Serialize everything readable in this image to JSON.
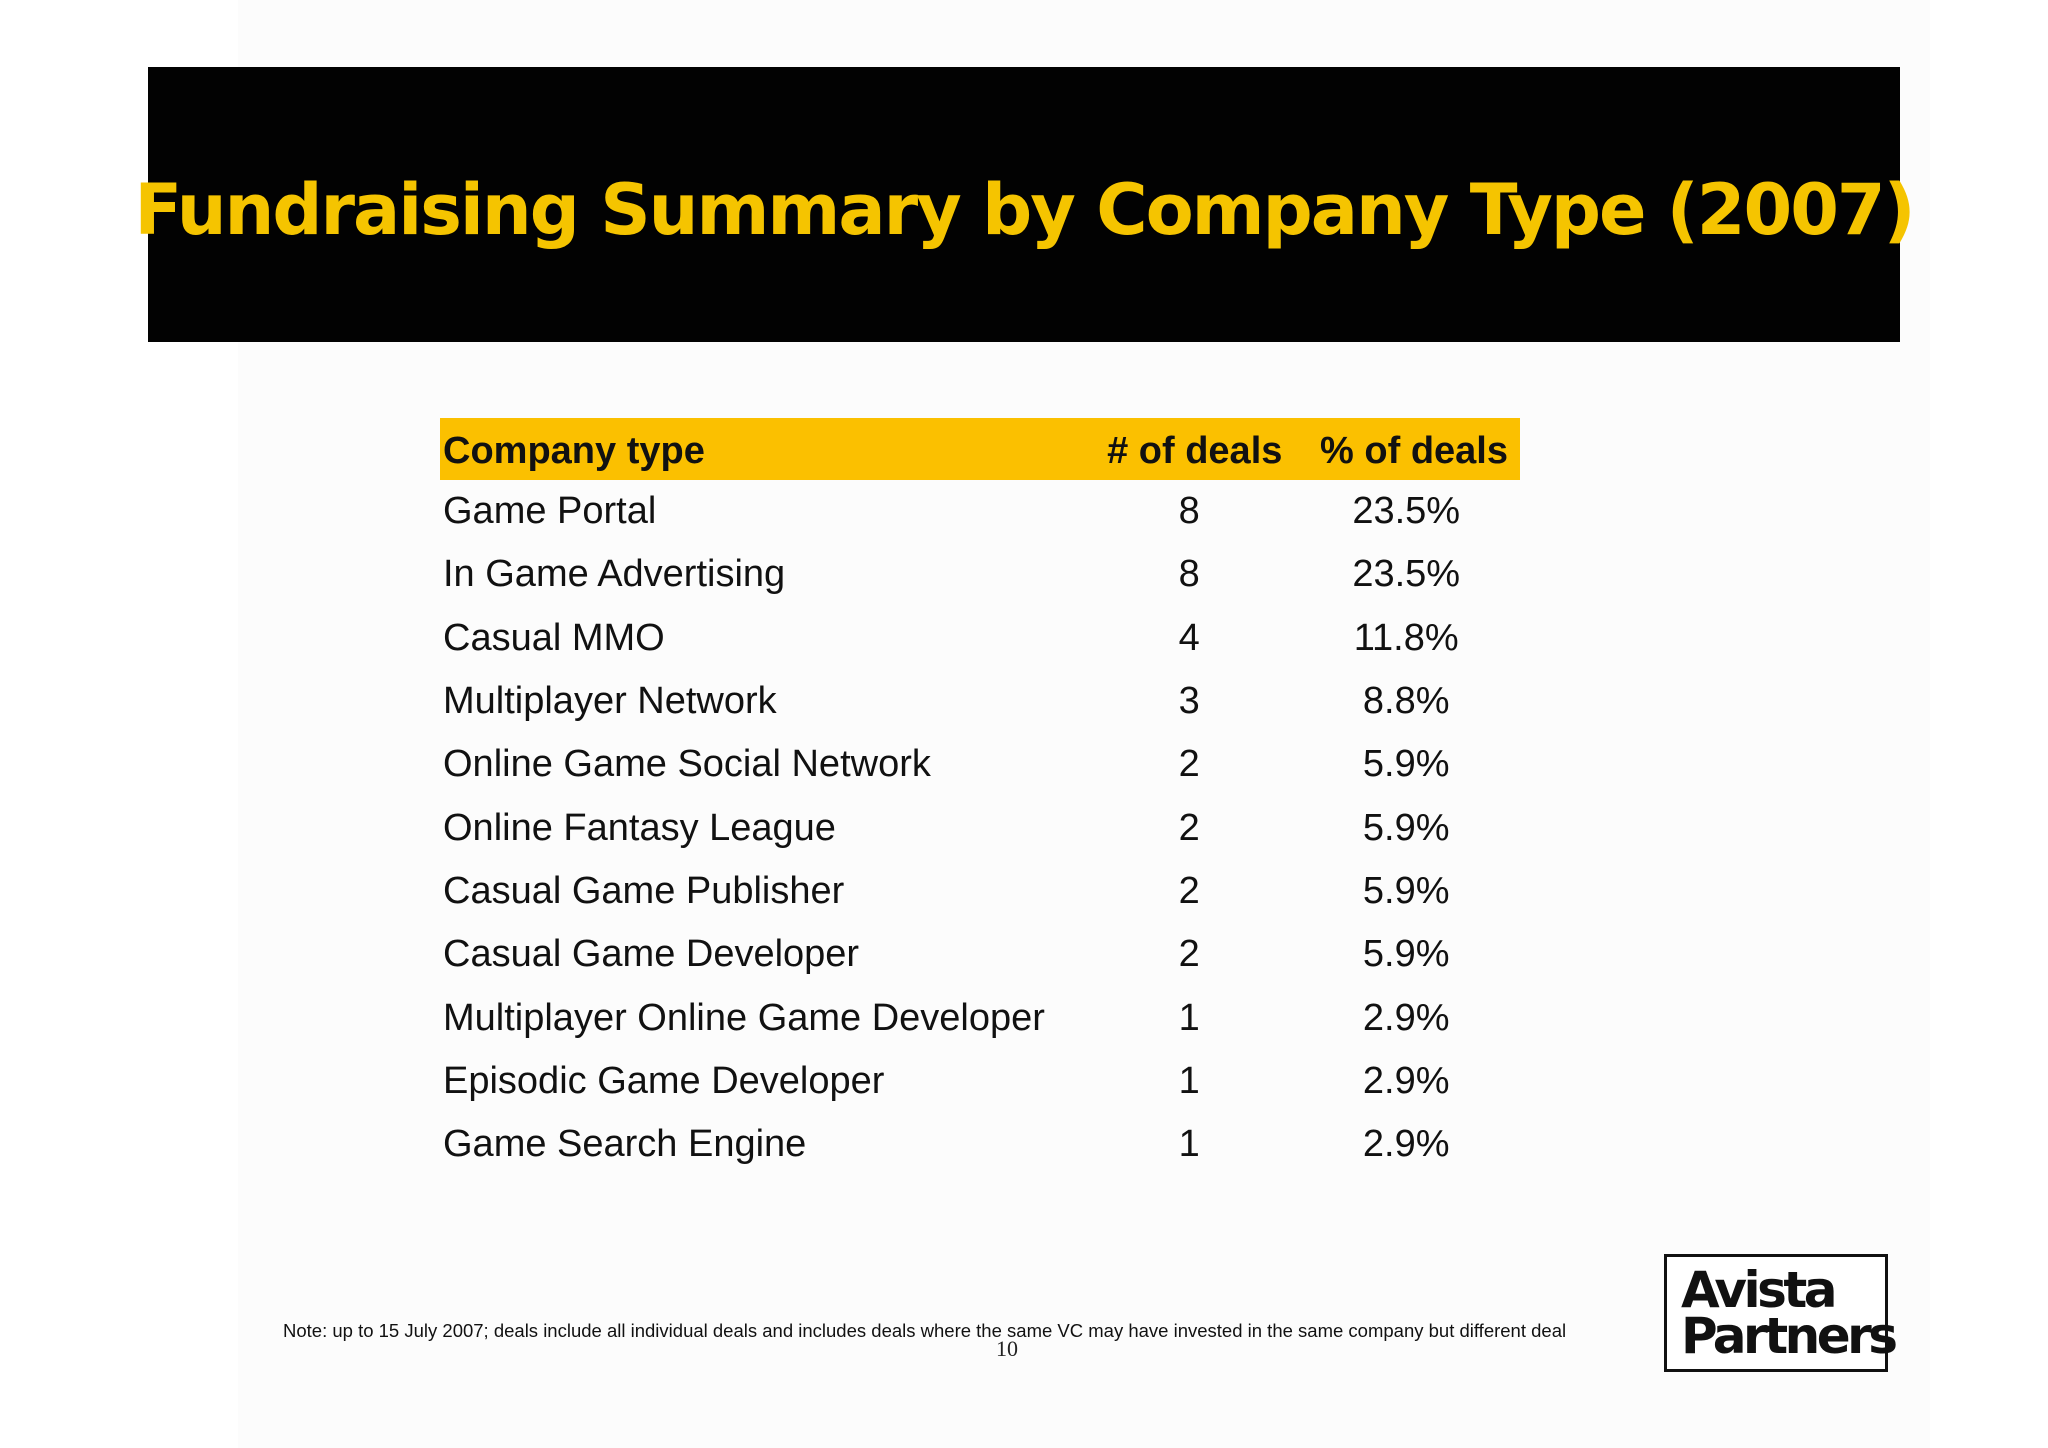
{
  "title": "Fundraising Summary by Company Type (2007)",
  "table": {
    "headers": [
      "Company type",
      "# of deals",
      "% of deals"
    ],
    "rows": [
      [
        "Game Portal",
        "8",
        "23.5%"
      ],
      [
        "In Game Advertising",
        "8",
        "23.5%"
      ],
      [
        "Casual MMO",
        "4",
        "11.8%"
      ],
      [
        "Multiplayer Network",
        "3",
        "8.8%"
      ],
      [
        "Online Game Social Network",
        "2",
        "5.9%"
      ],
      [
        "Online Fantasy League",
        "2",
        "5.9%"
      ],
      [
        "Casual Game Publisher",
        "2",
        "5.9%"
      ],
      [
        "Casual Game Developer",
        "2",
        "5.9%"
      ],
      [
        "Multiplayer Online Game Developer",
        "1",
        "2.9%"
      ],
      [
        "Episodic Game Developer",
        "1",
        "2.9%"
      ],
      [
        "Game Search Engine",
        "1",
        "2.9%"
      ]
    ]
  },
  "note": "Note: up to 15 July 2007; deals include all individual deals and includes deals where the same VC may have invested in the same company but different deal",
  "page_number": "10",
  "logo": {
    "line1": "Avista",
    "line2": "Partners"
  },
  "colors": {
    "title_banner": "#020202",
    "title_text": "#f5c400",
    "header_highlight": "#fbc000"
  }
}
